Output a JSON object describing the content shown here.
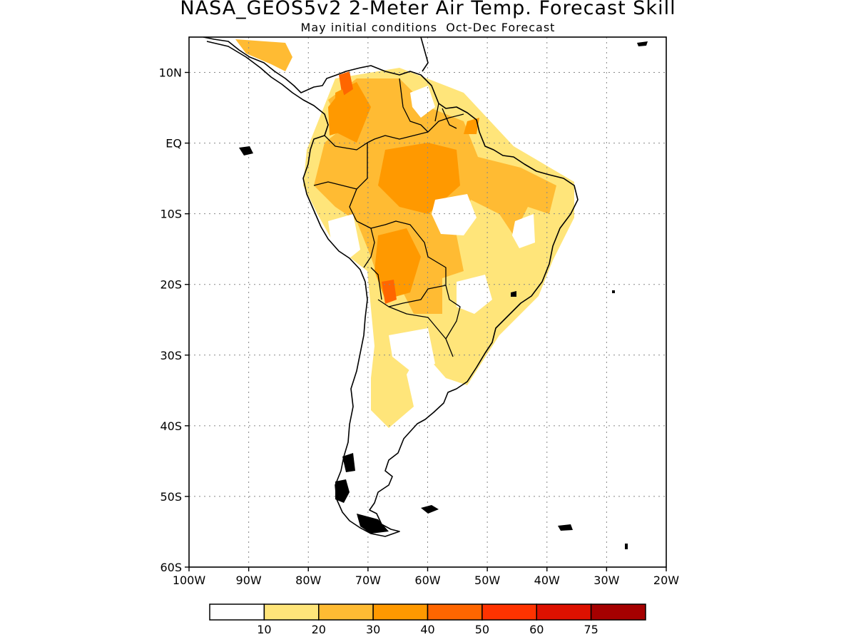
{
  "header": {
    "title": "NASA_GEOS5v2 2-Meter Air Temp. Forecast Skill",
    "subtitle": "May initial conditions  Oct-Dec Forecast"
  },
  "map": {
    "lon_range": [
      -100,
      -20
    ],
    "lat_range": [
      -60,
      15
    ],
    "lon_ticks": [
      "100W",
      "90W",
      "80W",
      "70W",
      "60W",
      "50W",
      "40W",
      "30W",
      "20W"
    ],
    "lat_ticks": [
      "10N",
      "EQ",
      "10S",
      "20S",
      "30S",
      "40S",
      "50S",
      "60S"
    ],
    "gridlines": true
  },
  "legend": {
    "colors": [
      "#ffffff",
      "#ffe57a",
      "#ffbb33",
      "#ff9900",
      "#ff6600",
      "#ff3300",
      "#dd1100",
      "#a50000"
    ],
    "labels": [
      "10",
      "20",
      "30",
      "40",
      "50",
      "60",
      "75"
    ]
  }
}
